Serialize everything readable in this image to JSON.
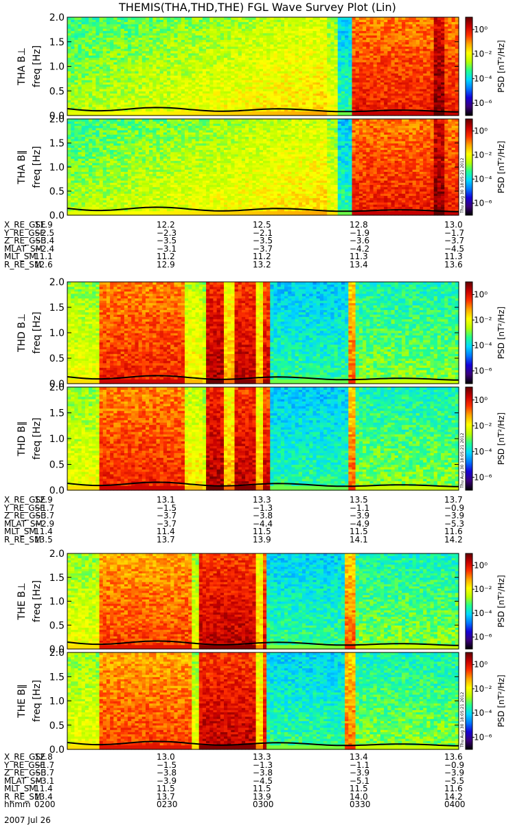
{
  "title": "THEMIS(THA,THD,THE) FGL Wave Survey Plot (Lin)",
  "colorbar": {
    "label": "PSD [nT²/Hz]",
    "tick_labels": [
      "10⁰",
      "10⁻²",
      "10⁻⁴",
      "10⁻⁶"
    ],
    "tick_exponents": [
      0,
      -2,
      -4,
      -6
    ],
    "range_log10": [
      -7,
      1
    ],
    "colors": [
      "#000000",
      "#3a007a",
      "#1500d8",
      "#0078ff",
      "#00d8ff",
      "#20ff90",
      "#b8ff00",
      "#ffff00",
      "#ffa800",
      "#ff3000",
      "#c80000",
      "#600000"
    ]
  },
  "stamp": "Thu Aug 30 18:05:21 2012",
  "chart_data": [
    {
      "type": "heatmap",
      "probe": "THA",
      "ylabel": [
        "THA B⊥",
        "freq [Hz]"
      ],
      "ylim": [
        0,
        2.0
      ],
      "yticks": [
        "0.0",
        "0.5",
        "1.0",
        "1.5",
        "2.0"
      ],
      "x_range": [
        "0200",
        "0400"
      ]
    },
    {
      "type": "heatmap",
      "probe": "THA",
      "ylabel": [
        "THA B∥",
        "freq [Hz]"
      ],
      "ylim": [
        0,
        2.0
      ],
      "yticks": [
        "0.0",
        "0.5",
        "1.0",
        "1.5",
        "2.0"
      ],
      "x_range": [
        "0200",
        "0400"
      ]
    },
    {
      "type": "heatmap",
      "probe": "THD",
      "ylabel": [
        "THD B⊥",
        "freq [Hz]"
      ],
      "ylim": [
        0,
        2.0
      ],
      "yticks": [
        "0.0",
        "0.5",
        "1.0",
        "1.5",
        "2.0"
      ],
      "x_range": [
        "0200",
        "0400"
      ]
    },
    {
      "type": "heatmap",
      "probe": "THD",
      "ylabel": [
        "THD B∥",
        "freq [Hz]"
      ],
      "ylim": [
        0,
        2.0
      ],
      "yticks": [
        "0.0",
        "0.5",
        "1.0",
        "1.5",
        "2.0"
      ],
      "x_range": [
        "0200",
        "0400"
      ]
    },
    {
      "type": "heatmap",
      "probe": "THE",
      "ylabel": [
        "THE B⊥",
        "freq [Hz]"
      ],
      "ylim": [
        0,
        2.0
      ],
      "yticks": [
        "0.0",
        "0.5",
        "1.0",
        "1.5",
        "2.0"
      ],
      "x_range": [
        "0200",
        "0400"
      ]
    },
    {
      "type": "heatmap",
      "probe": "THE",
      "ylabel": [
        "THE B∥",
        "freq [Hz]"
      ],
      "ylim": [
        0,
        2.0
      ],
      "yticks": [
        "0.0",
        "0.5",
        "1.0",
        "1.5",
        "2.0"
      ],
      "x_range": [
        "0200",
        "0400"
      ]
    }
  ],
  "ephemeris": [
    {
      "probe": "THA",
      "rows": [
        {
          "label": "X_RE_GSE",
          "values": [
            "11.9",
            "12.2",
            "12.5",
            "12.8",
            "13.0"
          ]
        },
        {
          "label": "Y_RE_GSE",
          "values": [
            "-2.5",
            "-2.3",
            "-2.1",
            "-1.9",
            "-1.7"
          ]
        },
        {
          "label": "Z_RE_GSE",
          "values": [
            "-3.4",
            "-3.5",
            "-3.5",
            "-3.6",
            "-3.7"
          ]
        },
        {
          "label": "MLAT_SM",
          "values": [
            "-2.4",
            "-3.1",
            "-3.7",
            "-4.2",
            "-4.5"
          ]
        },
        {
          "label": "MLT_SM",
          "values": [
            "11.1",
            "11.2",
            "11.2",
            "11.3",
            "11.3"
          ]
        },
        {
          "label": "R_RE_SM",
          "values": [
            "12.6",
            "12.9",
            "13.2",
            "13.4",
            "13.6"
          ]
        }
      ]
    },
    {
      "probe": "THD",
      "rows": [
        {
          "label": "X_RE_GSE",
          "values": [
            "12.9",
            "13.1",
            "13.3",
            "13.5",
            "13.7"
          ]
        },
        {
          "label": "Y_RE_GSE",
          "values": [
            "-1.7",
            "-1.5",
            "-1.3",
            "-1.1",
            "-0.9"
          ]
        },
        {
          "label": "Z_RE_GSE",
          "values": [
            "-3.7",
            "-3.7",
            "-3.8",
            "-3.9",
            "-3.9"
          ]
        },
        {
          "label": "MLAT_SM",
          "values": [
            "-2.9",
            "-3.7",
            "-4.4",
            "-4.9",
            "-5.3"
          ]
        },
        {
          "label": "MLT_SM",
          "values": [
            "11.4",
            "11.4",
            "11.5",
            "11.5",
            "11.6"
          ]
        },
        {
          "label": "R_RE_SM",
          "values": [
            "13.5",
            "13.7",
            "13.9",
            "14.1",
            "14.2"
          ]
        }
      ]
    },
    {
      "probe": "THE",
      "rows": [
        {
          "label": "X_RE_GSE",
          "values": [
            "12.8",
            "13.0",
            "13.3",
            "13.4",
            "13.6"
          ]
        },
        {
          "label": "Y_RE_GSE",
          "values": [
            "-1.7",
            "-1.5",
            "-1.3",
            "-1.1",
            "-0.9"
          ]
        },
        {
          "label": "Z_RE_GSE",
          "values": [
            "-3.7",
            "-3.8",
            "-3.8",
            "-3.9",
            "-3.9"
          ]
        },
        {
          "label": "MLAT_SM",
          "values": [
            "-3.1",
            "-3.9",
            "-4.5",
            "-5.1",
            "-5.5"
          ]
        },
        {
          "label": "MLT_SM",
          "values": [
            "11.4",
            "11.5",
            "11.5",
            "11.5",
            "11.6"
          ]
        },
        {
          "label": "R_RE_SM",
          "values": [
            "13.4",
            "13.7",
            "13.9",
            "14.0",
            "14.2"
          ]
        },
        {
          "label": "hhmm",
          "values": [
            "0200",
            "0230",
            "0300",
            "0330",
            "0400"
          ]
        }
      ]
    }
  ],
  "date": "2007 Jul 26"
}
